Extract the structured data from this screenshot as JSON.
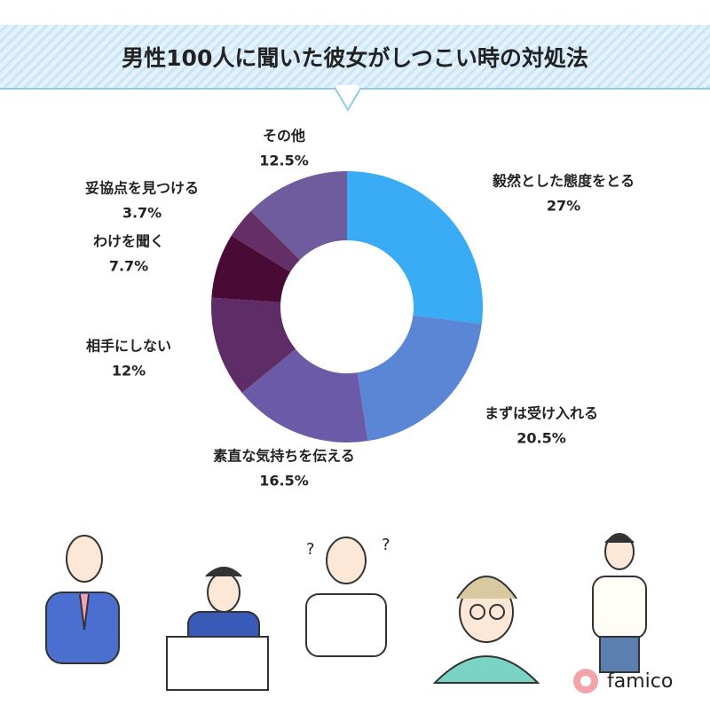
{
  "chart_data": {
    "type": "pie",
    "donut": true,
    "title": "男性100人に聞いた彼女がしつこい時の対処法",
    "categories": [
      "毅然とした態度をとる",
      "まずは受け入れる",
      "素直な気持ちを伝える",
      "相手にしない",
      "わけを聞く",
      "妥協点を見つける",
      "その他"
    ],
    "values": [
      27,
      20.5,
      16.5,
      12,
      7.7,
      3.7,
      12.5
    ],
    "value_labels": [
      "27%",
      "20.5%",
      "16.5%",
      "12%",
      "7.7%",
      "3.7%",
      "12.5%"
    ],
    "colors": [
      "#3aabf5",
      "#5b86d6",
      "#6a5aa8",
      "#5e2c66",
      "#4a0a36",
      "#632f66",
      "#6e5c9f"
    ]
  },
  "brand": "famico"
}
